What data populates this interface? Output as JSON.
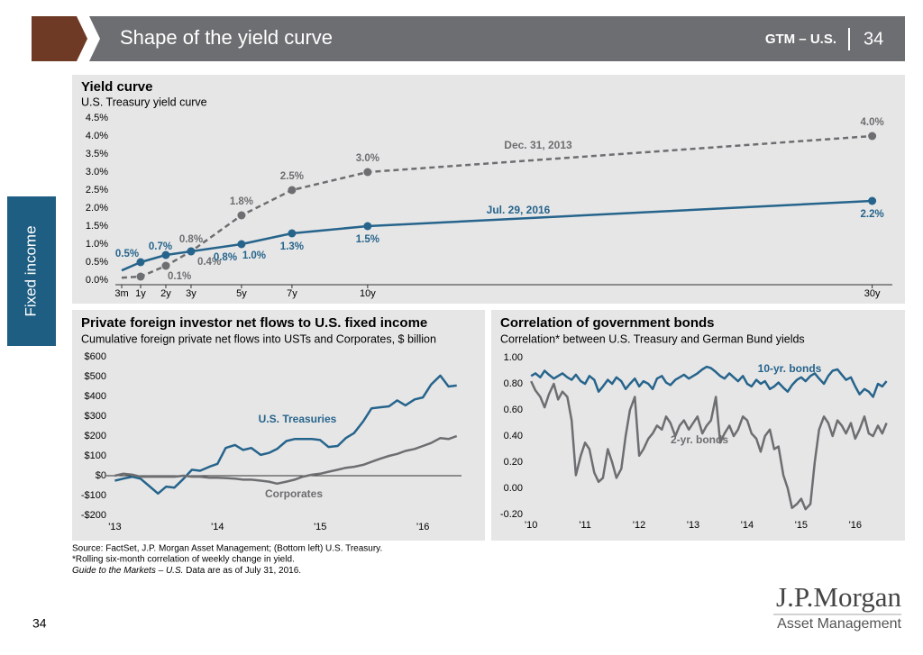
{
  "header": {
    "title": "Shape of the yield curve",
    "section": "GTM – U.S.",
    "page": "34"
  },
  "side_tab": "Fixed income",
  "chart_data": [
    {
      "type": "line",
      "title": "Yield curve",
      "subtitle": "U.S. Treasury yield curve",
      "x": [
        0.25,
        1,
        2,
        3,
        5,
        7,
        10,
        30
      ],
      "xlim": [
        0,
        30.8
      ],
      "xticks": [
        {
          "value": 0.25,
          "label": "3m"
        },
        {
          "value": 1,
          "label": "1y"
        },
        {
          "value": 2,
          "label": "2y"
        },
        {
          "value": 3,
          "label": "3y"
        },
        {
          "value": 5,
          "label": "5y"
        },
        {
          "value": 7,
          "label": "7y"
        },
        {
          "value": 10,
          "label": "10y"
        },
        {
          "value": 30,
          "label": "30y"
        }
      ],
      "ylim": [
        0,
        4.5
      ],
      "yticks": [
        {
          "value": 0,
          "label": "0.0%"
        },
        {
          "value": 0.5,
          "label": "0.5%"
        },
        {
          "value": 1,
          "label": "1.0%"
        },
        {
          "value": 1.5,
          "label": "1.5%"
        },
        {
          "value": 2,
          "label": "2.0%"
        },
        {
          "value": 2.5,
          "label": "2.5%"
        },
        {
          "value": 3,
          "label": "3.0%"
        },
        {
          "value": 3.5,
          "label": "3.5%"
        },
        {
          "value": 4,
          "label": "4.0%"
        },
        {
          "value": 4.5,
          "label": "4.5%"
        }
      ],
      "markers": true,
      "series": [
        {
          "name": "Dec. 31, 2013",
          "color": "#6d6e71",
          "dashed": true,
          "values": [
            0.07,
            0.1,
            0.4,
            0.8,
            1.8,
            2.5,
            3.0,
            4.0
          ],
          "value_labels": [
            null,
            "0.1%",
            "0.4%",
            "0.8%",
            "1.8%",
            "2.5%",
            "3.0%",
            "4.0%"
          ]
        },
        {
          "name": "Jul. 29, 2016",
          "color": "#26648c",
          "dashed": false,
          "values": [
            0.27,
            0.5,
            0.7,
            0.8,
            1.0,
            1.3,
            1.5,
            2.2
          ],
          "value_labels": [
            null,
            "0.5%",
            "0.7%",
            "0.8%",
            "1.0%",
            "1.3%",
            "1.5%",
            "2.2%"
          ]
        }
      ]
    },
    {
      "type": "line",
      "title": "Private foreign investor net flows to U.S. fixed income",
      "subtitle": "Cumulative foreign private net flows into USTs and Corporates, $ billion",
      "x": [
        2013,
        2013.08,
        2013.17,
        2013.25,
        2013.33,
        2013.42,
        2013.5,
        2013.58,
        2013.67,
        2013.75,
        2013.83,
        2013.92,
        2014,
        2014.08,
        2014.17,
        2014.25,
        2014.33,
        2014.42,
        2014.5,
        2014.58,
        2014.67,
        2014.75,
        2014.83,
        2014.92,
        2015,
        2015.08,
        2015.17,
        2015.25,
        2015.33,
        2015.42,
        2015.5,
        2015.58,
        2015.67,
        2015.75,
        2015.83,
        2015.92,
        2016,
        2016.08,
        2016.17,
        2016.25,
        2016.33
      ],
      "xlim": [
        2012.97,
        2016.42
      ],
      "xticks": [
        {
          "value": 2013,
          "label": "'13"
        },
        {
          "value": 2014,
          "label": "'14"
        },
        {
          "value": 2015,
          "label": "'15"
        },
        {
          "value": 2016,
          "label": "'16"
        }
      ],
      "ylim": [
        -200,
        600
      ],
      "yticks": [
        {
          "value": -200,
          "label": "-$200"
        },
        {
          "value": -100,
          "label": "-$100"
        },
        {
          "value": 0,
          "label": "$0"
        },
        {
          "value": 100,
          "label": "$100"
        },
        {
          "value": 200,
          "label": "$200"
        },
        {
          "value": 300,
          "label": "$300"
        },
        {
          "value": 400,
          "label": "$400"
        },
        {
          "value": 500,
          "label": "$500"
        },
        {
          "value": 600,
          "label": "$600"
        }
      ],
      "series": [
        {
          "name": "U.S. Treasuries",
          "color": "#26648c",
          "values": [
            -25,
            -15,
            -5,
            -15,
            -50,
            -90,
            -55,
            -60,
            -15,
            30,
            25,
            45,
            60,
            140,
            155,
            130,
            140,
            105,
            115,
            135,
            175,
            185,
            185,
            185,
            180,
            145,
            150,
            190,
            215,
            275,
            340,
            345,
            350,
            380,
            355,
            385,
            395,
            460,
            505,
            450,
            455
          ]
        },
        {
          "name": "Corporates",
          "color": "#6d6e71",
          "values": [
            0,
            10,
            5,
            -5,
            -5,
            -5,
            -5,
            -5,
            0,
            -5,
            -5,
            -10,
            -10,
            -12,
            -15,
            -20,
            -20,
            -25,
            -30,
            -40,
            -30,
            -20,
            -5,
            5,
            10,
            20,
            30,
            40,
            45,
            55,
            70,
            85,
            100,
            110,
            125,
            135,
            150,
            165,
            190,
            185,
            200
          ]
        }
      ]
    },
    {
      "type": "line",
      "title": "Correlation of government bonds",
      "subtitle": "Correlation* between U.S. Treasury and German Bund yields",
      "x": [
        2010,
        2010.08,
        2010.17,
        2010.25,
        2010.33,
        2010.42,
        2010.5,
        2010.58,
        2010.67,
        2010.75,
        2010.83,
        2010.92,
        2011,
        2011.08,
        2011.17,
        2011.25,
        2011.33,
        2011.42,
        2011.5,
        2011.58,
        2011.67,
        2011.75,
        2011.83,
        2011.92,
        2012,
        2012.08,
        2012.17,
        2012.25,
        2012.33,
        2012.42,
        2012.5,
        2012.58,
        2012.67,
        2012.75,
        2012.83,
        2012.92,
        2013,
        2013.08,
        2013.17,
        2013.25,
        2013.33,
        2013.42,
        2013.5,
        2013.58,
        2013.67,
        2013.75,
        2013.83,
        2013.92,
        2014,
        2014.08,
        2014.17,
        2014.25,
        2014.33,
        2014.42,
        2014.5,
        2014.58,
        2014.67,
        2014.75,
        2014.83,
        2014.92,
        2015,
        2015.08,
        2015.17,
        2015.25,
        2015.33,
        2015.42,
        2015.5,
        2015.58,
        2015.67,
        2015.75,
        2015.83,
        2015.92,
        2016,
        2016.08,
        2016.17,
        2016.25,
        2016.33,
        2016.42,
        2016.5,
        2016.58
      ],
      "xlim": [
        2009.93,
        2016.67
      ],
      "xticks": [
        {
          "value": 2010,
          "label": "'10"
        },
        {
          "value": 2011,
          "label": "'11"
        },
        {
          "value": 2012,
          "label": "'12"
        },
        {
          "value": 2013,
          "label": "'13"
        },
        {
          "value": 2014,
          "label": "'14"
        },
        {
          "value": 2015,
          "label": "'15"
        },
        {
          "value": 2016,
          "label": "'16"
        }
      ],
      "ylim": [
        -0.2,
        1.0
      ],
      "yticks": [
        {
          "value": -0.2,
          "label": "-0.20"
        },
        {
          "value": 0,
          "label": "0.00"
        },
        {
          "value": 0.2,
          "label": "0.20"
        },
        {
          "value": 0.4,
          "label": "0.40"
        },
        {
          "value": 0.6,
          "label": "0.60"
        },
        {
          "value": 0.8,
          "label": "0.80"
        },
        {
          "value": 1.0,
          "label": "1.00"
        }
      ],
      "series": [
        {
          "name": "10-yr. bonds",
          "color": "#26648c",
          "values": [
            0.86,
            0.88,
            0.85,
            0.9,
            0.87,
            0.84,
            0.86,
            0.88,
            0.85,
            0.83,
            0.87,
            0.82,
            0.8,
            0.86,
            0.83,
            0.74,
            0.78,
            0.83,
            0.8,
            0.85,
            0.82,
            0.76,
            0.8,
            0.84,
            0.78,
            0.82,
            0.8,
            0.76,
            0.84,
            0.86,
            0.81,
            0.79,
            0.83,
            0.85,
            0.87,
            0.84,
            0.86,
            0.88,
            0.91,
            0.93,
            0.92,
            0.89,
            0.86,
            0.84,
            0.88,
            0.85,
            0.82,
            0.86,
            0.8,
            0.78,
            0.83,
            0.8,
            0.82,
            0.76,
            0.78,
            0.81,
            0.77,
            0.74,
            0.79,
            0.83,
            0.85,
            0.82,
            0.86,
            0.88,
            0.84,
            0.8,
            0.86,
            0.9,
            0.91,
            0.87,
            0.83,
            0.85,
            0.78,
            0.72,
            0.76,
            0.74,
            0.7,
            0.8,
            0.78,
            0.82
          ]
        },
        {
          "name": "2-yr. bonds",
          "color": "#6d6e71",
          "values": [
            0.82,
            0.75,
            0.7,
            0.62,
            0.72,
            0.8,
            0.68,
            0.74,
            0.7,
            0.52,
            0.1,
            0.25,
            0.35,
            0.3,
            0.12,
            0.05,
            0.08,
            0.3,
            0.2,
            0.08,
            0.15,
            0.4,
            0.6,
            0.7,
            0.25,
            0.3,
            0.38,
            0.42,
            0.48,
            0.45,
            0.55,
            0.5,
            0.4,
            0.48,
            0.52,
            0.45,
            0.5,
            0.55,
            0.42,
            0.48,
            0.52,
            0.7,
            0.35,
            0.42,
            0.48,
            0.4,
            0.45,
            0.55,
            0.52,
            0.42,
            0.38,
            0.28,
            0.4,
            0.45,
            0.3,
            0.32,
            0.1,
            0.0,
            -0.15,
            -0.12,
            -0.08,
            -0.16,
            -0.12,
            0.2,
            0.45,
            0.55,
            0.5,
            0.4,
            0.52,
            0.48,
            0.42,
            0.5,
            0.38,
            0.45,
            0.55,
            0.42,
            0.4,
            0.48,
            0.42,
            0.5
          ]
        }
      ]
    }
  ],
  "footer": {
    "source": "Source: FactSet, J.P. Morgan Asset Management; (Bottom left) U.S. Treasury.",
    "note": "*Rolling six-month correlation of weekly change in yield.",
    "guide": "Guide to the Markets – U.S.",
    "asof": "Data are as of July 31, 2016."
  },
  "page_number": "34",
  "logo": {
    "name": "J.P.Morgan",
    "sub": "Asset Management"
  }
}
